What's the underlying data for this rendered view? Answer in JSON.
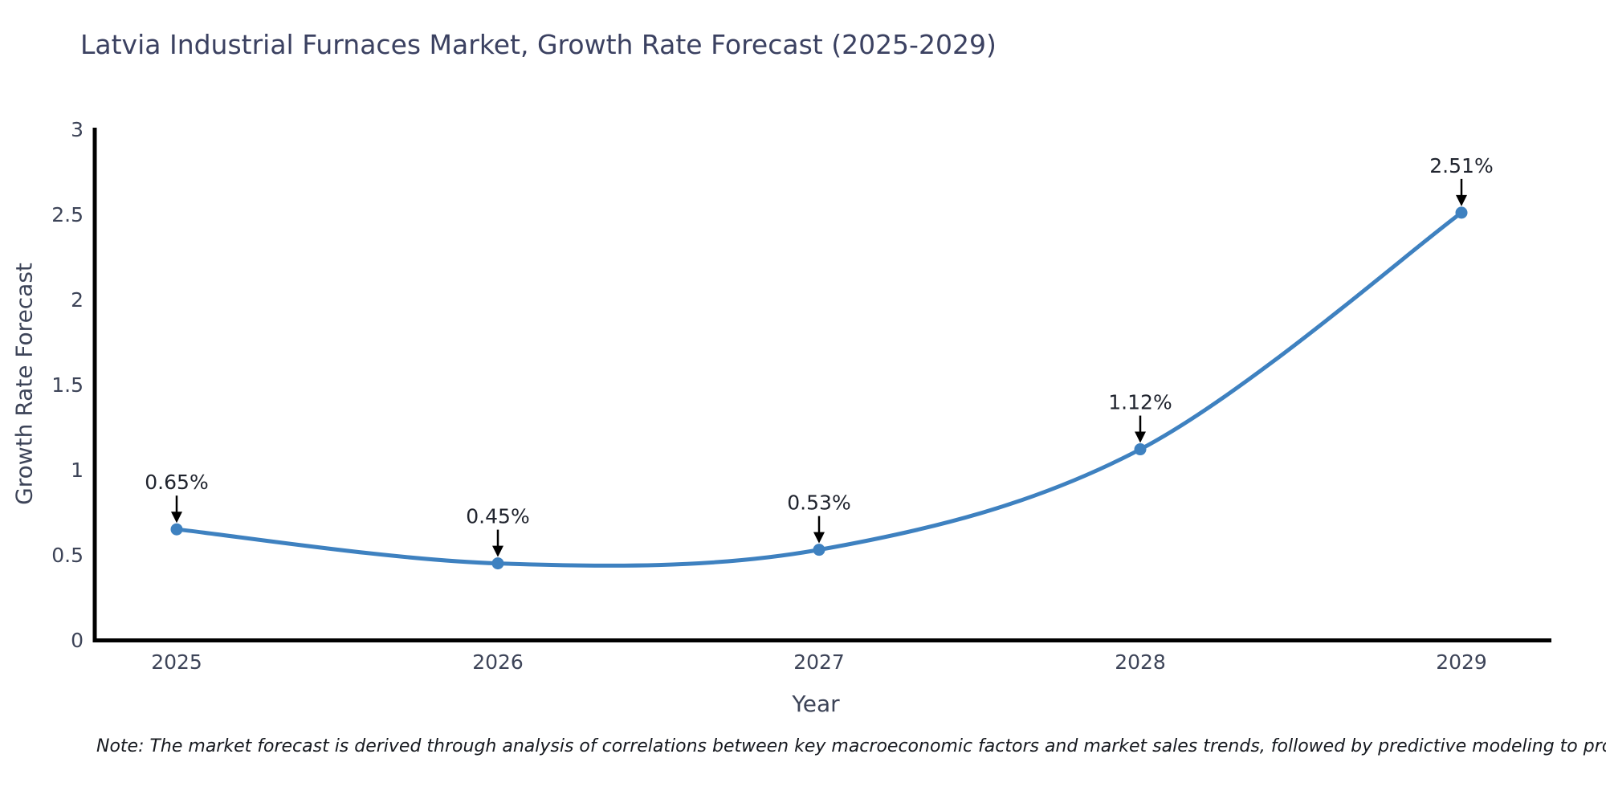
{
  "note": "Note: The market forecast is derived through analysis of correlations between key macroeconomic factors and market sales trends, followed by predictive modeling to project future sales",
  "chart_data": {
    "type": "line",
    "title": "Latvia Industrial Furnaces Market, Growth Rate Forecast (2025-2029)",
    "xlabel": "Year",
    "ylabel": "Growth Rate Forecast",
    "x": [
      2025,
      2026,
      2027,
      2028,
      2029
    ],
    "values": [
      0.65,
      0.45,
      0.53,
      1.12,
      2.51
    ],
    "point_labels": [
      "0.65%",
      "0.45%",
      "0.53%",
      "1.12%",
      "2.51%"
    ],
    "yticks": [
      0,
      0.5,
      1,
      1.5,
      2,
      2.5,
      3
    ],
    "ylim": [
      0,
      3
    ],
    "grid": false,
    "legend": "none",
    "line_color": "#3e81c0",
    "marker_color": "#3e81c0",
    "axis_color": "#000000",
    "annotation_color": "#000000"
  }
}
